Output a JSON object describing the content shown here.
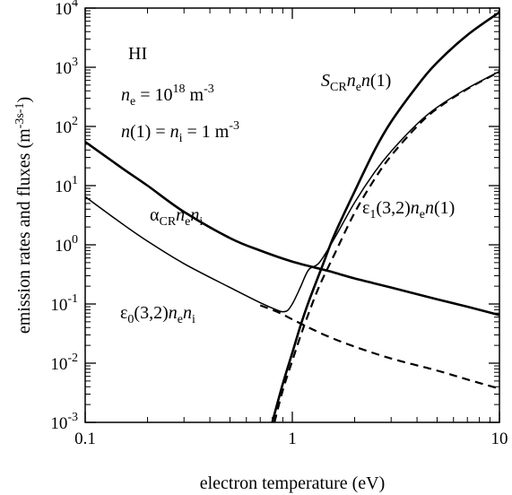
{
  "chart_data": {
    "type": "line",
    "xlabel": "electron temperature (eV)",
    "ylabel_main": "emission rates and fluxes (m",
    "ylabel_sup": "-3",
    "ylabel_sup2": "s",
    "ylabel_sup3": "-1",
    "ylabel_close": ")",
    "xscale": "log",
    "yscale": "log",
    "xlim": [
      0.1,
      10
    ],
    "ylim": [
      0.001,
      10000
    ],
    "grid": false,
    "legend": "none",
    "xticks": [
      {
        "value": 0.1,
        "label": "0.1"
      },
      {
        "value": 1,
        "label": "1"
      },
      {
        "value": 10,
        "label": "10"
      }
    ],
    "yticks": [
      {
        "value": 0.001,
        "base": "10",
        "exp": "-3"
      },
      {
        "value": 0.01,
        "base": "10",
        "exp": "-2"
      },
      {
        "value": 0.1,
        "base": "10",
        "exp": "-1"
      },
      {
        "value": 1,
        "base": "10",
        "exp": "0"
      },
      {
        "value": 10,
        "base": "10",
        "exp": "1"
      },
      {
        "value": 100,
        "base": "10",
        "exp": "2"
      },
      {
        "value": 1000,
        "base": "10",
        "exp": "3"
      },
      {
        "value": 10000,
        "base": "10",
        "exp": "4"
      }
    ],
    "annotations": {
      "species": "HI",
      "ne_sym": "n",
      "ne_sub": "e",
      "ne_eq": " = 10",
      "ne_exp": "18",
      "ne_unit": " m",
      "ne_unit_exp": "-3",
      "n1_lhs": "n",
      "n1_paren": "(1) = ",
      "n1_ni": "n",
      "n1_ni_sub": "i",
      "n1_rhs": " = 1 m",
      "n1_rhs_exp": "-3",
      "alpha_sym": "α",
      "alpha_sub": "CR",
      "alpha_n": "n",
      "alpha_n_sub": "e",
      "alpha_n2": "n",
      "alpha_n2_sub": "i",
      "s_sym": "S",
      "s_sub": "CR",
      "s_n": "n",
      "s_n_sub": "e",
      "s_n2": "n",
      "s_tail": "(1)",
      "e1_sym": "ε",
      "e1_sub": "1",
      "e1_mid": "(3,2)",
      "e1_n": "n",
      "e1_n_sub": "e",
      "e1_n2": "n",
      "e1_tail": "(1)",
      "e0_sym": "ε",
      "e0_sub": "0",
      "e0_mid": "(3,2)",
      "e0_n": "n",
      "e0_n_sub": "e",
      "e0_n2": "n",
      "e0_n2_sub": "i"
    },
    "series": [
      {
        "key": "alpha",
        "style": "solid-thick",
        "x": [
          0.1,
          0.15,
          0.2,
          0.3,
          0.5,
          0.7,
          1.0,
          1.5,
          2,
          3,
          5,
          7,
          10
        ],
        "y": [
          55,
          20,
          10,
          3.6,
          1.3,
          0.8,
          0.52,
          0.36,
          0.27,
          0.19,
          0.12,
          0.09,
          0.065
        ]
      },
      {
        "key": "s_cr",
        "style": "solid-thick",
        "x": [
          0.8,
          0.9,
          1.0,
          1.1,
          1.2,
          1.4,
          1.6,
          2.0,
          2.5,
          3,
          4,
          5,
          7,
          10
        ],
        "y": [
          0.001,
          0.0045,
          0.015,
          0.045,
          0.11,
          0.45,
          1.5,
          8,
          40,
          120,
          480,
          1200,
          3500,
          8500
        ]
      },
      {
        "key": "eps_total",
        "style": "solid-thin",
        "x": [
          0.1,
          0.15,
          0.2,
          0.3,
          0.5,
          0.7,
          0.85,
          0.9,
          0.95,
          1.0,
          1.05,
          1.1,
          1.2,
          1.35,
          1.6,
          2,
          2.5,
          3,
          4,
          5,
          7,
          10
        ],
        "y": [
          6.5,
          2.3,
          1.15,
          0.48,
          0.19,
          0.105,
          0.078,
          0.074,
          0.078,
          0.1,
          0.14,
          0.2,
          0.38,
          0.5,
          1.3,
          5.2,
          17,
          38,
          110,
          210,
          440,
          850
        ]
      },
      {
        "key": "eps0",
        "style": "dashed",
        "x": [
          0.7,
          0.85,
          1.0,
          1.2,
          1.5,
          2,
          3,
          5,
          7,
          10
        ],
        "y": [
          0.095,
          0.073,
          0.055,
          0.04,
          0.028,
          0.019,
          0.012,
          0.0075,
          0.0053,
          0.0037
        ]
      },
      {
        "key": "eps1",
        "style": "dashed",
        "x": [
          0.82,
          0.9,
          1.0,
          1.1,
          1.2,
          1.35,
          1.6,
          2,
          2.5,
          3,
          4,
          5,
          7,
          10
        ],
        "y": [
          0.001,
          0.0035,
          0.011,
          0.03,
          0.07,
          0.2,
          0.7,
          3.5,
          13,
          32,
          100,
          200,
          430,
          840
        ]
      }
    ]
  }
}
